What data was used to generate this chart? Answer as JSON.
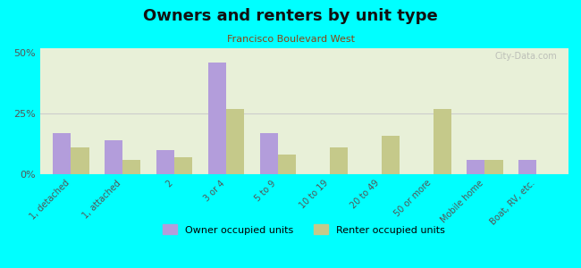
{
  "title": "Owners and renters by unit type",
  "subtitle": "Francisco Boulevard West",
  "categories": [
    "1, detached",
    "1, attached",
    "2",
    "3 or 4",
    "5 to 9",
    "10 to 19",
    "20 to 49",
    "50 or more",
    "Mobile home",
    "Boat, RV, etc."
  ],
  "owner_values": [
    17,
    14,
    10,
    46,
    17,
    0,
    0,
    0,
    6,
    6
  ],
  "renter_values": [
    11,
    6,
    7,
    27,
    8,
    11,
    16,
    27,
    6,
    0
  ],
  "owner_color": "#b39ddb",
  "renter_color": "#c5c98a",
  "background_color": "#00ffff",
  "plot_bg_top": "#ffffff",
  "plot_bg_bottom": "#e8f0d8",
  "ylim": [
    0,
    52
  ],
  "yticks": [
    0,
    25,
    50
  ],
  "ytick_labels": [
    "0%",
    "25%",
    "50%"
  ],
  "bar_width": 0.35,
  "legend_owner": "Owner occupied units",
  "legend_renter": "Renter occupied units",
  "watermark": "City-Data.com"
}
